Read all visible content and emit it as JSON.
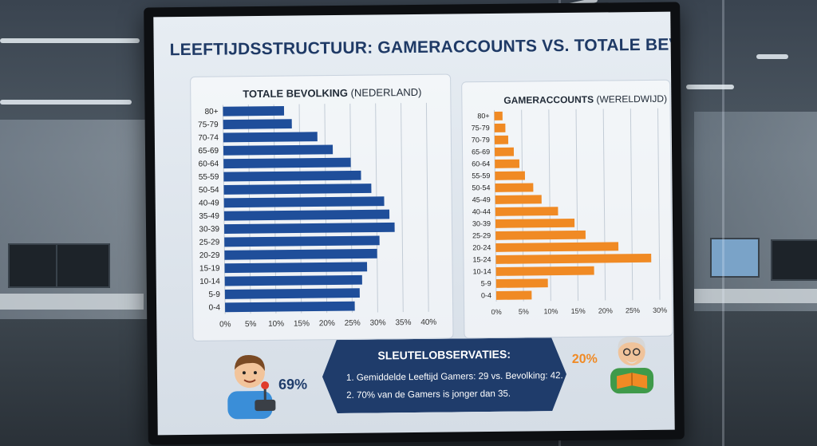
{
  "title": "LEEFTIJDSSTRUCTUUR: GAMERACCOUNTS VS. TOTALE BEVOLKING",
  "colors": {
    "population": "#1f4e9a",
    "gamers": "#f08a24",
    "title": "#1f3a66",
    "box": "#1f3c6b"
  },
  "chart_data": [
    {
      "type": "bar",
      "orientation": "horizontal",
      "title_main": "TOTALE BEVOLKING",
      "title_sub": "(NEDERLAND)",
      "categories": [
        "80+",
        "75-79",
        "70-74",
        "65-69",
        "60-64",
        "55-59",
        "50-54",
        "40-49",
        "35-49",
        "30-39",
        "25-29",
        "20-29",
        "15-19",
        "10-14",
        "5-9",
        "0-4"
      ],
      "values": [
        12,
        13.5,
        18.5,
        21.5,
        25,
        27,
        29,
        31.5,
        32.5,
        33.5,
        30.5,
        30,
        28,
        27,
        26.5,
        25.5
      ],
      "xticks": [
        "0%",
        "5%",
        "10%",
        "15%",
        "20%",
        "25%",
        "30%",
        "35%",
        "40%"
      ],
      "xlim": [
        0,
        40
      ],
      "grid": true
    },
    {
      "type": "bar",
      "orientation": "horizontal",
      "title_main": "GAMERACCOUNTS",
      "title_sub": "(WERELDWIJD)",
      "categories": [
        "80+",
        "75-79",
        "70-79",
        "65-69",
        "60-64",
        "55-59",
        "50-54",
        "45-49",
        "40-44",
        "30-39",
        "25-29",
        "20-24",
        "15-24",
        "10-14",
        "5-9",
        "0-4"
      ],
      "values": [
        1.5,
        2,
        2.5,
        3.5,
        4.5,
        5.5,
        7,
        8.5,
        11.5,
        14.5,
        16.5,
        22.5,
        28.5,
        18,
        9.5,
        6.5
      ],
      "xticks": [
        "0%",
        "5%",
        "10%",
        "15%",
        "20%",
        "25%",
        "30%"
      ],
      "xlim": [
        0,
        30
      ],
      "grid": true
    }
  ],
  "observations": {
    "title": "SLEUTELOBSERVATIES:",
    "items": [
      "1. Gemiddelde Leeftijd Gamers: 29 vs. Bevolking: 42.",
      "2. 70% van de Gamers is jonger dan 35."
    ]
  },
  "left_percent": "69%",
  "right_percent": "20%",
  "icons": {
    "left_avatar": "young-gamer-with-joystick-icon",
    "right_avatar": "elderly-man-reading-icon"
  }
}
